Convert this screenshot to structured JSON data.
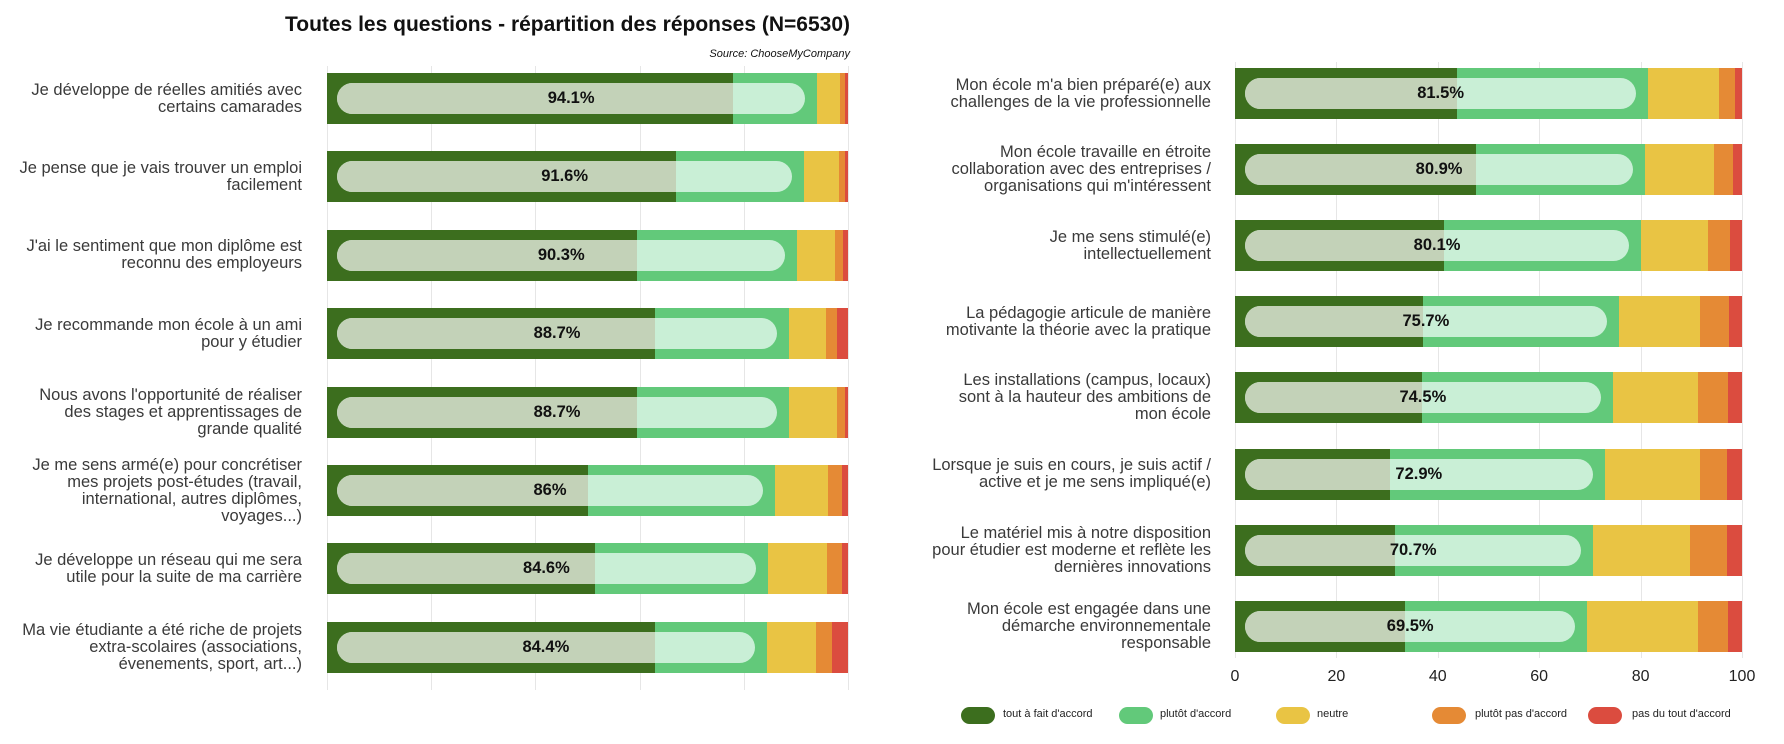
{
  "title": "Toutes les questions - répartition des réponses (N=6530)",
  "source": "Source: ChooseMyCompany",
  "colors": {
    "tout_a_fait": "#3c6e1e",
    "plutot": "#62c97a",
    "neutre": "#e9c444",
    "plutot_pas": "#e58a35",
    "pas_du_tout": "#db4c3f"
  },
  "legend": [
    "tout à fait d'accord",
    "plutôt d'accord",
    "neutre",
    "plutôt pas d'accord",
    "pas du tout d'accord"
  ],
  "chart_data": [
    {
      "type": "bar",
      "orientation": "horizontal",
      "stacked": true,
      "categories": [
        "Je développe de réelles amitiés avec certains camarades",
        "Je pense que je vais trouver un emploi facilement",
        "J'ai le sentiment que mon diplôme est reconnu des employeurs",
        "Je recommande mon école à un ami pour y étudier",
        "Nous avons l'opportunité de réaliser des stages et apprentissages de grande qualité",
        "Je me sens armé(e) pour concrétiser mes projets post-études (travail, international, autres diplômes, voyages...)",
        "Je développe un réseau qui me sera utile pour la suite de ma carrière",
        "Ma vie étudiante a été riche de projets extra-scolaires (associations, évenements, sport, art...)"
      ],
      "agree_labels": [
        "94.1%",
        "91.6%",
        "90.3%",
        "88.7%",
        "88.7%",
        "86%",
        "84.6%",
        "84.4%"
      ],
      "series": [
        {
          "name": "tout à fait d'accord",
          "values": [
            78,
            67,
            59.5,
            63,
            59.5,
            50,
            51.5,
            63
          ]
        },
        {
          "name": "plutôt d'accord",
          "values": [
            16.1,
            24.6,
            30.8,
            25.7,
            29.2,
            36,
            33.1,
            21.4
          ]
        },
        {
          "name": "neutre",
          "values": [
            4.4,
            6.7,
            7.2,
            7.1,
            9.1,
            10.1,
            11.3,
            9.5
          ]
        },
        {
          "name": "plutôt pas d'accord",
          "values": [
            0.9,
            1.1,
            1.6,
            2.1,
            1.7,
            2.7,
            2.9,
            3.1
          ]
        },
        {
          "name": "pas du tout d'accord",
          "values": [
            0.6,
            0.6,
            0.9,
            2.1,
            0.5,
            1.2,
            1.2,
            3
          ]
        }
      ],
      "xlim": [
        0,
        100
      ],
      "grid": true
    },
    {
      "type": "bar",
      "orientation": "horizontal",
      "stacked": true,
      "categories": [
        "Mon école m'a bien préparé(e) aux challenges de la vie professionnelle",
        "Mon école travaille en étroite collaboration avec des entreprises / organisations qui m'intéressent",
        "Je me sens stimulé(e) intellectuellement",
        "La pédagogie articule de manière motivante la théorie avec la pratique",
        "Les installations (campus, locaux) sont à la hauteur des ambitions de mon école",
        "Lorsque je suis en cours, je suis actif / active et je me sens impliqué(e)",
        "Le matériel mis à notre disposition pour étudier est moderne et reflète les dernières innovations",
        "Mon école est engagée dans une démarche environnementale responsable"
      ],
      "agree_labels": [
        "81.5%",
        "80.9%",
        "80.1%",
        "75.7%",
        "74.5%",
        "72.9%",
        "70.7%",
        "69.5%"
      ],
      "series": [
        {
          "name": "tout à fait d'accord",
          "values": [
            43.7,
            47.5,
            41.2,
            37.1,
            36.8,
            30.5,
            31.5,
            33.5
          ]
        },
        {
          "name": "plutôt d'accord",
          "values": [
            37.8,
            33.4,
            38.9,
            38.6,
            37.7,
            42.4,
            39.2,
            36
          ]
        },
        {
          "name": "neutre",
          "values": [
            14,
            13.6,
            13.2,
            16,
            16.9,
            18.8,
            19,
            21.9
          ]
        },
        {
          "name": "plutôt pas d'accord",
          "values": [
            3.1,
            3.8,
            4.3,
            5.8,
            5.8,
            5.4,
            7.3,
            5.9
          ]
        },
        {
          "name": "pas du tout d'accord",
          "values": [
            1.4,
            1.7,
            2.4,
            2.5,
            2.8,
            2.9,
            3,
            2.7
          ]
        }
      ],
      "xlim": [
        0,
        100
      ],
      "xticks": [
        "0",
        "20",
        "40",
        "60",
        "80",
        "100"
      ],
      "grid": true
    }
  ]
}
